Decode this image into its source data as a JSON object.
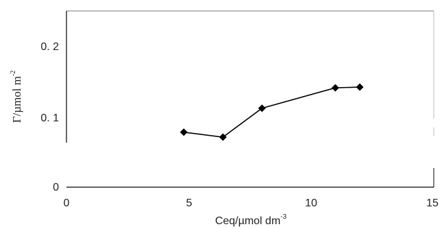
{
  "chart_data": {
    "type": "line",
    "x": [
      4.8,
      6.4,
      8.0,
      11.0,
      12.0
    ],
    "series": [
      {
        "values": [
          0.078,
          0.071,
          0.112,
          0.141,
          0.142
        ]
      }
    ],
    "xlim": [
      0,
      15
    ],
    "ylim": [
      0,
      0.25
    ],
    "x_ticks": [
      "0",
      "5",
      "10",
      "15"
    ],
    "y_ticks": [
      "0",
      "0. 1",
      "0. 2"
    ],
    "xlabel": {
      "main": "Ceq/µmol dm",
      "sup": "-3"
    },
    "ylabel": {
      "main": "Γ/µmol m",
      "sup": "-2"
    },
    "grid": false,
    "marker": "diamond",
    "line_color": "#000000",
    "marker_color": "#000000"
  }
}
